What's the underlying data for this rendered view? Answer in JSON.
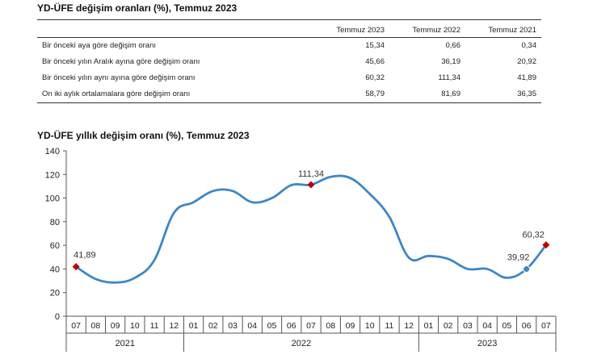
{
  "table": {
    "title": "YD-ÜFE değişim oranları (%), Temmuz 2023",
    "headers": [
      "",
      "Temmuz 2023",
      "Temmuz 2022",
      "Temmuz 2021"
    ],
    "rows": [
      {
        "label": "Bir önceki aya göre değişim oranı",
        "values": [
          "15,34",
          "0,66",
          "0,34"
        ]
      },
      {
        "label": "Bir önceki yılın Aralık ayına göre değişim oranı",
        "values": [
          "45,66",
          "36,19",
          "20,92"
        ]
      },
      {
        "label": "Bir önceki yılın aynı ayına göre değişim oranı",
        "values": [
          "60,32",
          "111,34",
          "41,89"
        ]
      },
      {
        "label": "On iki aylık ortalamalara göre değişim oranı",
        "values": [
          "58,79",
          "81,69",
          "36,35"
        ]
      }
    ]
  },
  "chart_data": {
    "type": "line",
    "title": "YD-ÜFE yıllık değişim oranı (%), Temmuz 2023",
    "xlabel": "",
    "ylabel": "",
    "ylim": [
      0,
      140
    ],
    "yticks": [
      "0",
      "20",
      "40",
      "60",
      "80",
      "100",
      "120",
      "140"
    ],
    "categories": [
      "07",
      "08",
      "09",
      "10",
      "11",
      "12",
      "01",
      "02",
      "03",
      "04",
      "05",
      "06",
      "07",
      "08",
      "09",
      "10",
      "11",
      "12",
      "01",
      "02",
      "03",
      "04",
      "05",
      "06",
      "07"
    ],
    "years": [
      {
        "label": "2021",
        "count": 6
      },
      {
        "label": "2022",
        "count": 12
      },
      {
        "label": "2023",
        "count": 7
      }
    ],
    "series": [
      {
        "name": "YD-ÜFE yıllık değişim oranı",
        "color": "#3c87c6",
        "values": [
          41.89,
          31.5,
          28.5,
          32.5,
          47.5,
          87.5,
          96.5,
          106,
          106,
          96.5,
          100,
          111,
          111.34,
          118,
          117,
          103.5,
          84,
          49.5,
          51,
          48.5,
          40,
          40,
          32.5,
          39.92,
          60.32
        ]
      }
    ],
    "annotations": [
      {
        "index": 0,
        "text": "41,89",
        "marker": "diamond",
        "color": "#c00000"
      },
      {
        "index": 12,
        "text": "111,34",
        "marker": "diamond",
        "color": "#c00000"
      },
      {
        "index": 23,
        "text": "39,92",
        "marker": "circle",
        "color": "#3c87c6"
      },
      {
        "index": 24,
        "text": "60,32",
        "marker": "diamond",
        "color": "#c00000"
      }
    ]
  }
}
